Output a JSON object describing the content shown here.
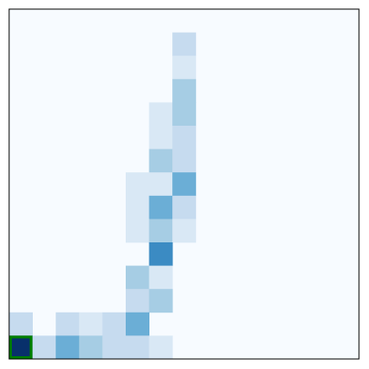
{
  "chart_data": {
    "type": "heatmap",
    "title": "",
    "xlabel": "",
    "ylabel": "",
    "rows": 15,
    "cols": 15,
    "colormap": "Blues",
    "vmin": 0,
    "vmax": 1,
    "row_order": "top-to-bottom",
    "grid": false,
    "axis_ticks": false,
    "background_color": "#f7fbff",
    "values": [
      [
        0,
        0,
        0,
        0,
        0,
        0,
        0,
        0,
        0,
        0,
        0,
        0,
        0,
        0,
        0
      ],
      [
        0,
        0,
        0,
        0,
        0,
        0,
        0,
        0.25,
        0,
        0,
        0,
        0,
        0,
        0,
        0
      ],
      [
        0,
        0,
        0,
        0,
        0,
        0,
        0,
        0.15,
        0,
        0,
        0,
        0,
        0,
        0,
        0
      ],
      [
        0,
        0,
        0,
        0,
        0,
        0,
        0,
        0.35,
        0,
        0,
        0,
        0,
        0,
        0,
        0
      ],
      [
        0,
        0,
        0,
        0,
        0,
        0,
        0.15,
        0.35,
        0,
        0,
        0,
        0,
        0,
        0,
        0
      ],
      [
        0,
        0,
        0,
        0,
        0,
        0,
        0.15,
        0.25,
        0,
        0,
        0,
        0,
        0,
        0,
        0
      ],
      [
        0,
        0,
        0,
        0,
        0,
        0,
        0.35,
        0.25,
        0,
        0,
        0,
        0,
        0,
        0,
        0
      ],
      [
        0,
        0,
        0,
        0,
        0,
        0.15,
        0.15,
        0.5,
        0,
        0,
        0,
        0,
        0,
        0,
        0
      ],
      [
        0,
        0,
        0,
        0,
        0,
        0.15,
        0.5,
        0.25,
        0,
        0,
        0,
        0,
        0,
        0,
        0
      ],
      [
        0,
        0,
        0,
        0,
        0,
        0.15,
        0.35,
        0.15,
        0,
        0,
        0,
        0,
        0,
        0,
        0
      ],
      [
        0,
        0,
        0,
        0,
        0,
        0,
        0.65,
        0,
        0,
        0,
        0,
        0,
        0,
        0,
        0
      ],
      [
        0,
        0,
        0,
        0,
        0,
        0.35,
        0.15,
        0,
        0,
        0,
        0,
        0,
        0,
        0,
        0
      ],
      [
        0,
        0,
        0,
        0,
        0,
        0.25,
        0.35,
        0,
        0,
        0,
        0,
        0,
        0,
        0,
        0
      ],
      [
        0.25,
        0,
        0.25,
        0.15,
        0.25,
        0.5,
        0,
        0,
        0,
        0,
        0,
        0,
        0,
        0,
        0
      ],
      [
        1.0,
        0.25,
        0.5,
        0.35,
        0.25,
        0.25,
        0.15,
        0,
        0,
        0,
        0,
        0,
        0,
        0,
        0
      ]
    ],
    "highlight": {
      "row": 14,
      "col": 0,
      "border_color": "#008000"
    },
    "frame_color": "#000000"
  }
}
